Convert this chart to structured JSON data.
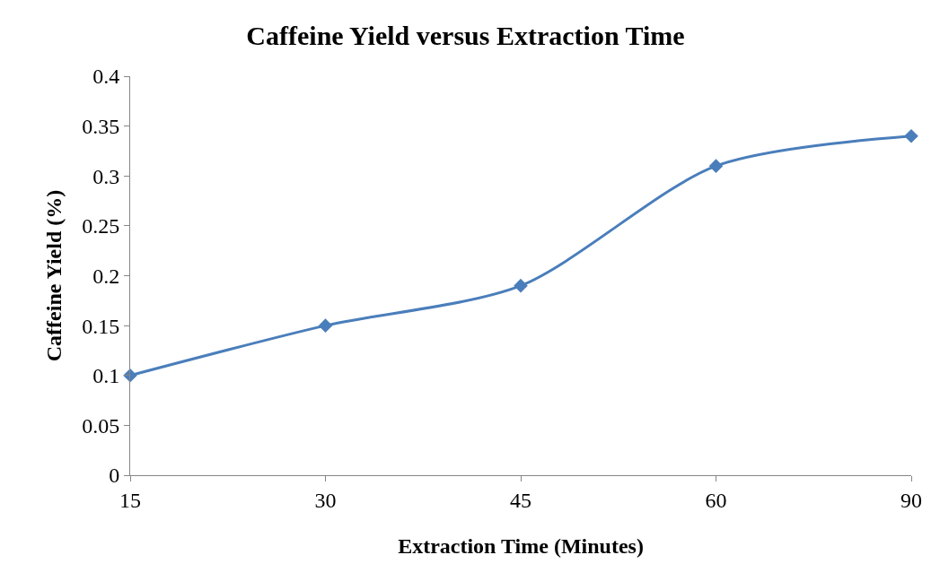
{
  "chart_data": {
    "type": "line",
    "title": "Caffeine Yield versus Extraction Time",
    "xlabel": "Extraction Time (Minutes)",
    "ylabel": "Caffeine Yield (%)",
    "categories": [
      "15",
      "30",
      "45",
      "60",
      "90"
    ],
    "series": [
      {
        "color": "#4a7ebb",
        "values": [
          0.1,
          0.15,
          0.19,
          0.31,
          0.34
        ]
      }
    ],
    "ylim": [
      0,
      0.4
    ],
    "yticks": [
      0,
      0.05,
      0.1,
      0.15,
      0.2,
      0.25,
      0.3,
      0.35,
      0.4
    ],
    "grid": false,
    "marker": "diamond",
    "line_style": "solid"
  }
}
